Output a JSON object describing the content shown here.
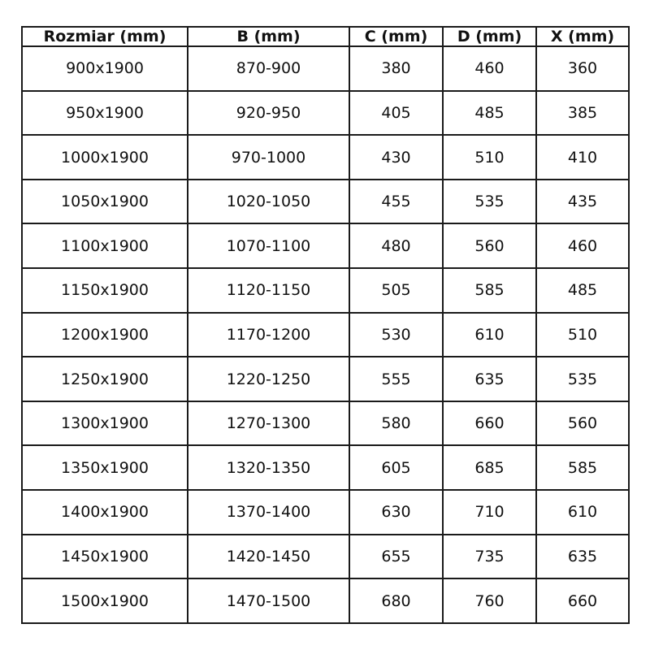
{
  "table": {
    "headers": [
      "Rozmiar (mm)",
      "B (mm)",
      "C (mm)",
      "D (mm)",
      "X (mm)"
    ],
    "rows": [
      [
        "900x1900",
        "870-900",
        "380",
        "460",
        "360"
      ],
      [
        "950x1900",
        "920-950",
        "405",
        "485",
        "385"
      ],
      [
        "1000x1900",
        "970-1000",
        "430",
        "510",
        "410"
      ],
      [
        "1050x1900",
        "1020-1050",
        "455",
        "535",
        "435"
      ],
      [
        "1100x1900",
        "1070-1100",
        "480",
        "560",
        "460"
      ],
      [
        "1150x1900",
        "1120-1150",
        "505",
        "585",
        "485"
      ],
      [
        "1200x1900",
        "1170-1200",
        "530",
        "610",
        "510"
      ],
      [
        "1250x1900",
        "1220-1250",
        "555",
        "635",
        "535"
      ],
      [
        "1300x1900",
        "1270-1300",
        "580",
        "660",
        "560"
      ],
      [
        "1350x1900",
        "1320-1350",
        "605",
        "685",
        "585"
      ],
      [
        "1400x1900",
        "1370-1400",
        "630",
        "710",
        "610"
      ],
      [
        "1450x1900",
        "1420-1450",
        "655",
        "735",
        "635"
      ],
      [
        "1500x1900",
        "1470-1500",
        "680",
        "760",
        "660"
      ]
    ]
  }
}
